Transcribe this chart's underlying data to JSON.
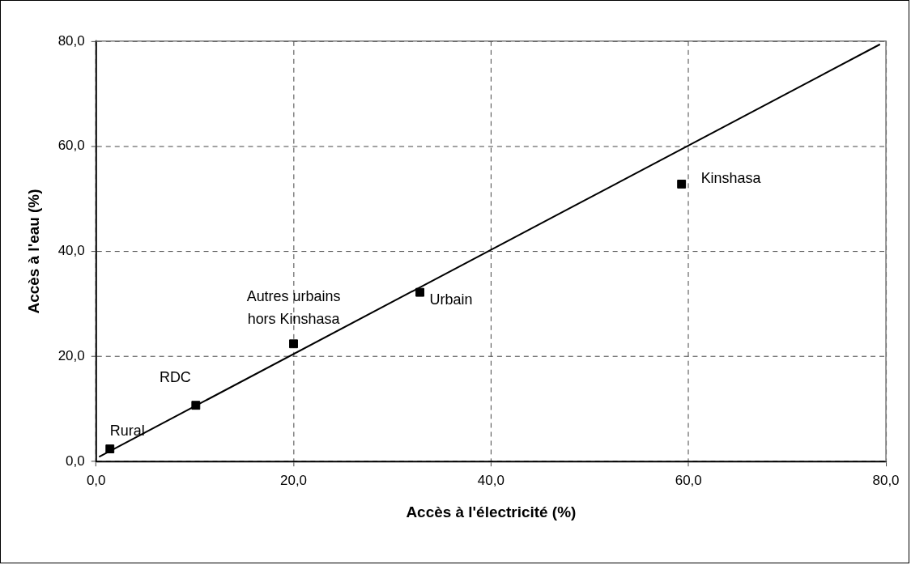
{
  "chart_data": {
    "type": "scatter",
    "xlabel": "Accès à l'électricité (%)",
    "ylabel": "Accès à l'eau (%)",
    "x": [
      1.4,
      10.1,
      20.0,
      32.8,
      59.3
    ],
    "series": [
      {
        "color": "#000000",
        "values": [
          2.4,
          10.7,
          22.4,
          32.2,
          52.8
        ],
        "marker": "square"
      },
      {
        "type": "line",
        "color": "#000000",
        "x": [
          0.3,
          79.4
        ],
        "values": [
          0.9,
          79.4
        ],
        "marker": "none",
        "line_style": "solid"
      }
    ],
    "annotations": [
      {
        "text": "Rural",
        "x": 1.4,
        "y": 2.4
      },
      {
        "text": "RDC",
        "x": 10.1,
        "y": 10.7
      },
      {
        "text": "Autres urbains\nhors Kinshasa",
        "x": 20.0,
        "y": 22.4
      },
      {
        "text": "Urbain",
        "x": 32.8,
        "y": 32.2
      },
      {
        "text": "Kinshasa",
        "x": 59.3,
        "y": 52.8
      }
    ],
    "xlim": [
      0,
      80
    ],
    "xticks": [
      {
        "value": 0,
        "label": "0,0"
      },
      {
        "value": 20,
        "label": "20,0"
      },
      {
        "value": 40,
        "label": "40,0"
      },
      {
        "value": 60,
        "label": "60,0"
      },
      {
        "value": 80,
        "label": "80,0"
      }
    ],
    "ylim": [
      0,
      80
    ],
    "yticks": [
      {
        "value": 0,
        "label": "0,0"
      },
      {
        "value": 20,
        "label": "20,0"
      },
      {
        "value": 40,
        "label": "40,0"
      },
      {
        "value": 60,
        "label": "60,0"
      },
      {
        "value": 80,
        "label": "80,0"
      }
    ],
    "grid": true,
    "legend": false
  }
}
